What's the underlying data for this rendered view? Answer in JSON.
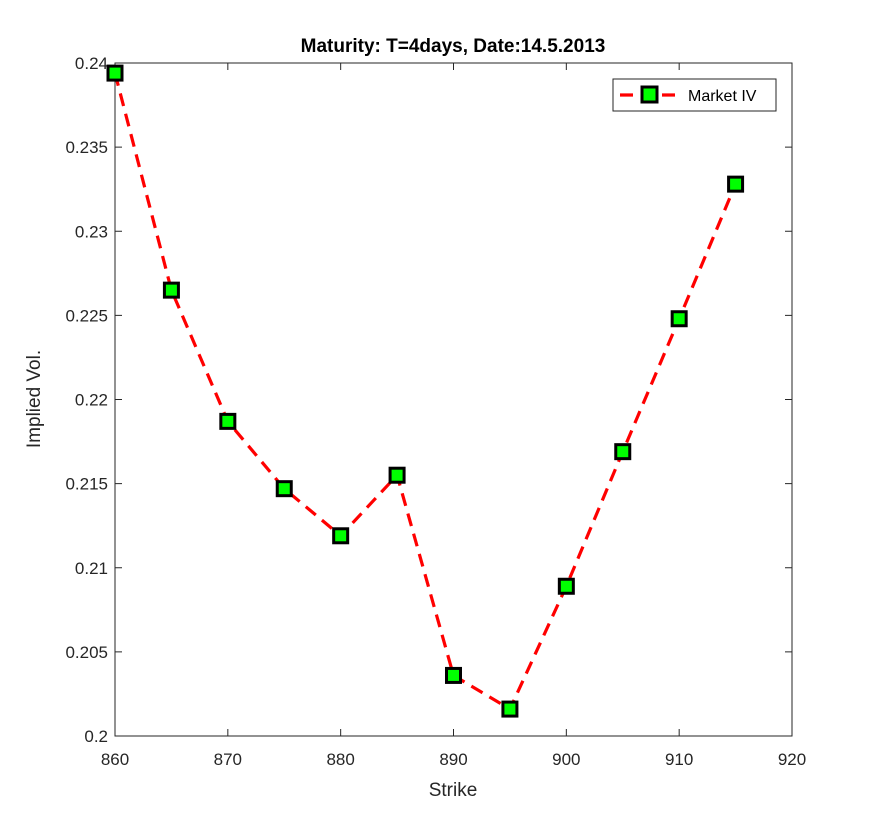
{
  "chart_data": {
    "type": "line",
    "title": "Maturity: T=4days, Date:14.5.2013",
    "xlabel": "Strike",
    "ylabel": "Implied Vol.",
    "xlim": [
      860,
      920
    ],
    "ylim": [
      0.2,
      0.24
    ],
    "xticks": [
      "860",
      "870",
      "880",
      "890",
      "900",
      "910",
      "920"
    ],
    "yticks": [
      "0.2",
      "0.205",
      "0.21",
      "0.215",
      "0.22",
      "0.225",
      "0.23",
      "0.235",
      "0.24"
    ],
    "grid": false,
    "legend_position": "top-right",
    "series": [
      {
        "name": "Market IV",
        "line_color": "#ff0000",
        "line_style": "dashed",
        "marker": "square",
        "marker_fill": "#00ff00",
        "marker_edge": "#000000",
        "x": [
          860,
          865,
          870,
          875,
          880,
          885,
          890,
          895,
          900,
          905,
          910,
          915
        ],
        "y": [
          0.2394,
          0.2265,
          0.2187,
          0.2147,
          0.2119,
          0.2155,
          0.2036,
          0.2016,
          0.2089,
          0.2169,
          0.2248,
          0.2328
        ]
      }
    ]
  }
}
